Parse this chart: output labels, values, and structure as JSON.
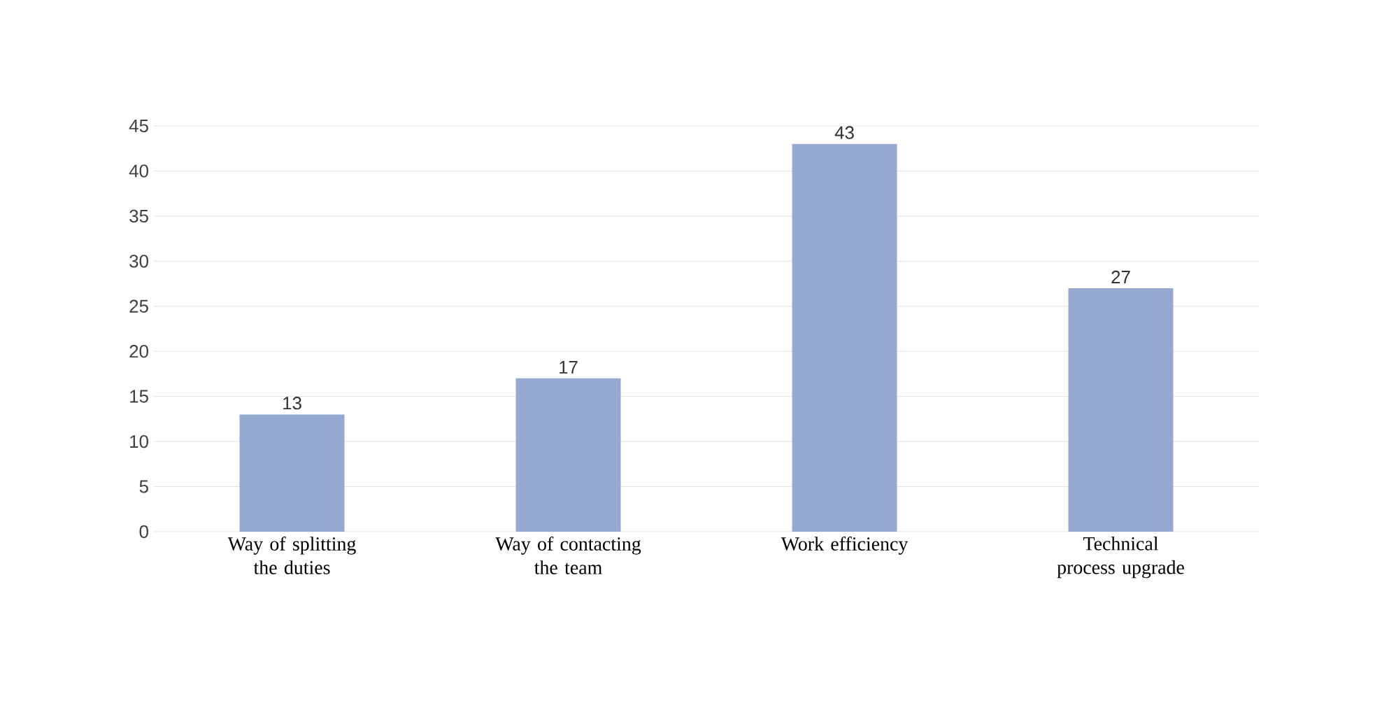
{
  "chart_data": {
    "type": "bar",
    "categories": [
      "Way of splitting the duties",
      "Way of contacting the team",
      "Work efficiency",
      "Technical process upgrade"
    ],
    "values": [
      13,
      17,
      43,
      27
    ],
    "color": "#95a9d1",
    "ylim": [
      0,
      45
    ],
    "yticks": [
      0,
      5,
      10,
      15,
      20,
      25,
      30,
      35,
      40,
      45
    ],
    "grid": "y",
    "data_labels": true
  }
}
